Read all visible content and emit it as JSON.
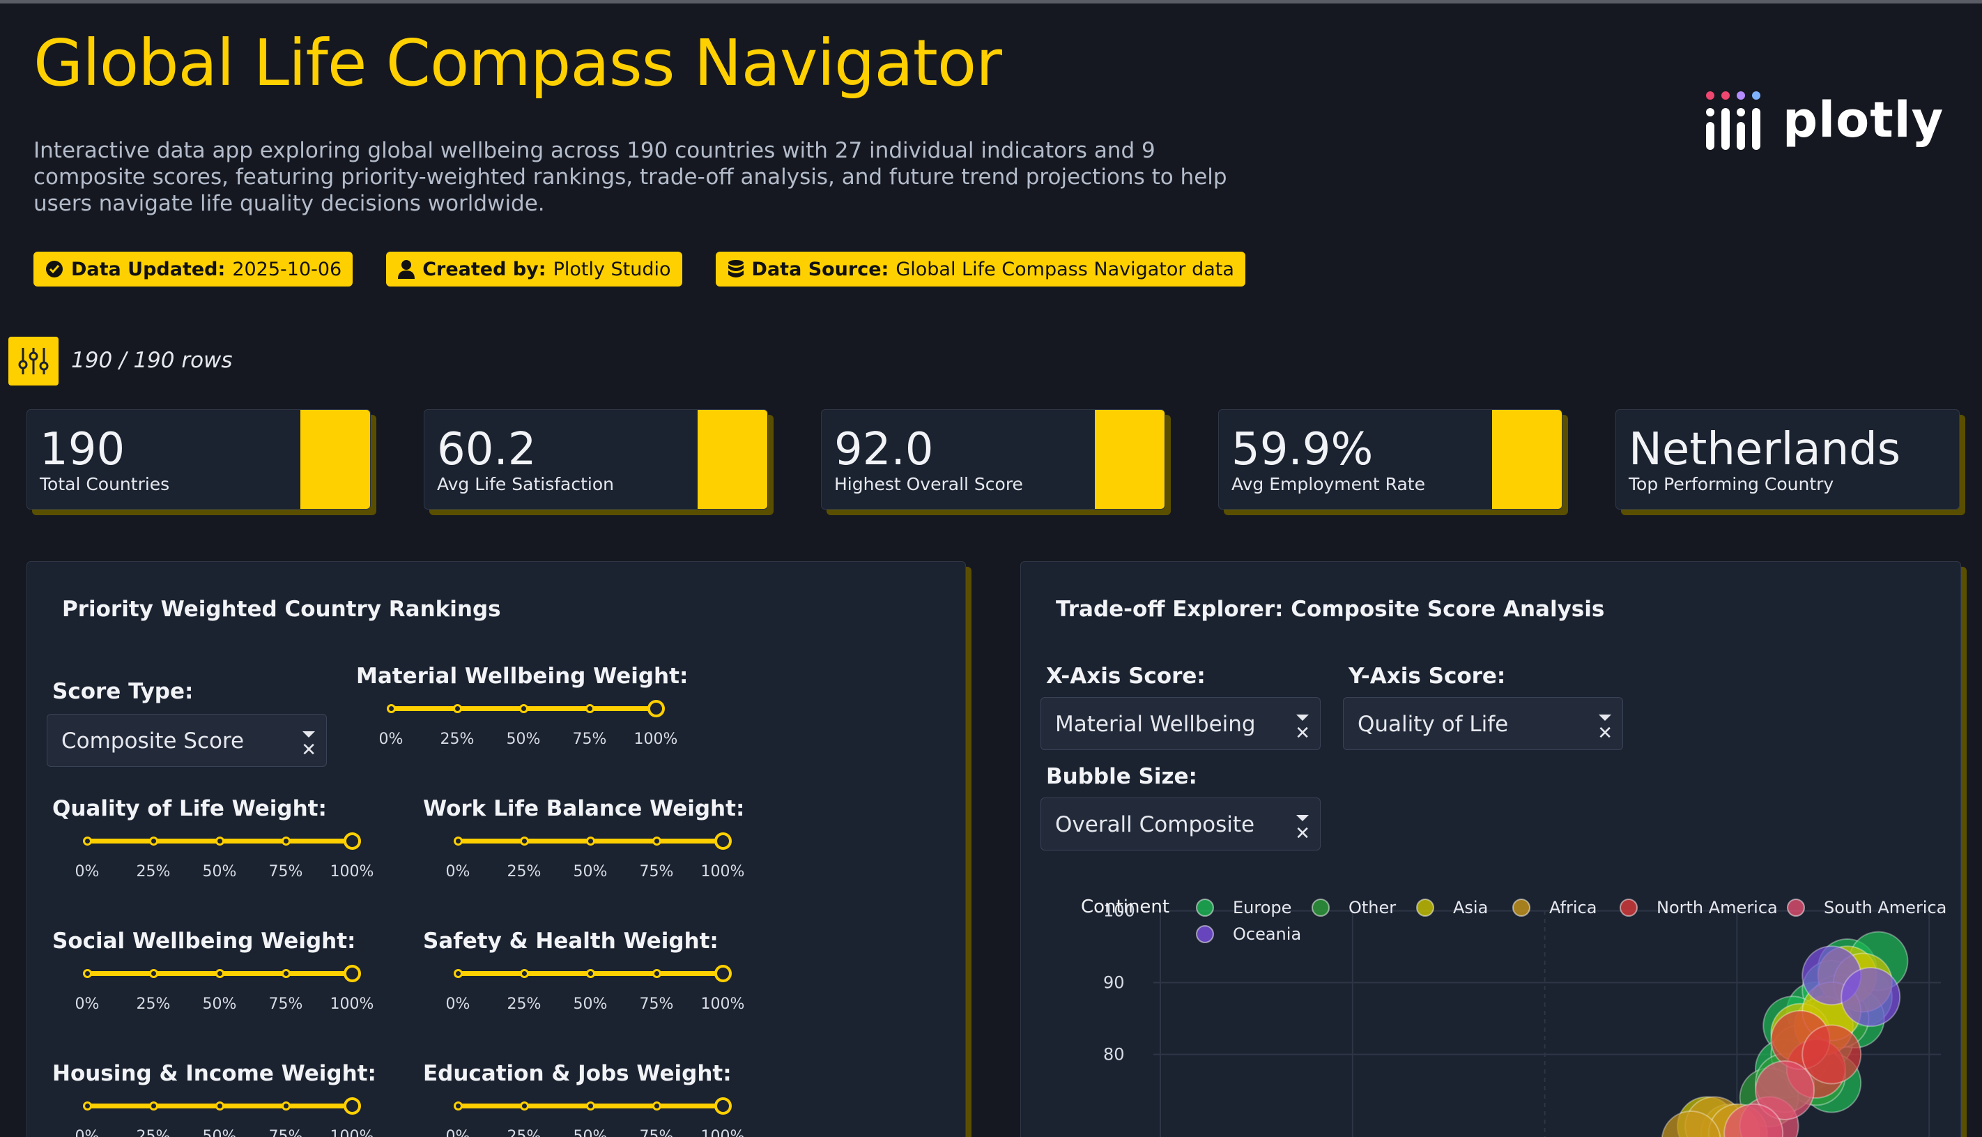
{
  "header": {
    "title": "Global Life Compass Navigator",
    "subtitle": "Interactive data app exploring global wellbeing across 190 countries with 27 individual indicators and 9 composite scores, featuring priority-weighted rankings, trade-off analysis, and future trend projections to help users navigate life quality decisions worldwide.",
    "logo_text": "plotly",
    "badges": [
      {
        "label": "Data Updated:",
        "value": "2025-10-06",
        "icon": "check-circle-icon"
      },
      {
        "label": "Created by:",
        "value": "Plotly Studio",
        "icon": "user-icon"
      },
      {
        "label": "Data Source:",
        "value": "Global Life Compass Navigator data",
        "icon": "database-icon"
      }
    ]
  },
  "filter": {
    "rows_text": "190 / 190 rows",
    "icon": "sliders-icon"
  },
  "kpis": [
    {
      "value": "190",
      "label": "Total Countries"
    },
    {
      "value": "60.2",
      "label": "Avg Life Satisfaction"
    },
    {
      "value": "92.0",
      "label": "Highest Overall Score"
    },
    {
      "value": "59.9%",
      "label": "Avg Employment Rate"
    },
    {
      "value": "Netherlands",
      "label": "Top Performing Country"
    }
  ],
  "rankings": {
    "title": "Priority Weighted Country Rankings",
    "score_type_label": "Score Type:",
    "score_type_value": "Composite Score",
    "tick_labels": [
      "0%",
      "25%",
      "50%",
      "75%",
      "100%"
    ],
    "sliders": [
      {
        "label": "Material Wellbeing Weight:",
        "value": 1.0
      },
      {
        "label": "Quality of Life Weight:",
        "value": 1.0
      },
      {
        "label": "Work Life Balance Weight:",
        "value": 1.0
      },
      {
        "label": "Social Wellbeing Weight:",
        "value": 1.0
      },
      {
        "label": "Safety & Health Weight:",
        "value": 1.0
      },
      {
        "label": "Housing & Income Weight:",
        "value": 1.0
      },
      {
        "label": "Education & Jobs Weight:",
        "value": 1.0
      }
    ]
  },
  "tradeoff": {
    "title": "Trade-off Explorer: Composite Score Analysis",
    "x_label": "X-Axis Score:",
    "x_value": "Material Wellbeing",
    "y_label": "Y-Axis Score:",
    "y_value": "Quality of Life",
    "size_label": "Bubble Size:",
    "size_value": "Overall Composite"
  },
  "chart_data": {
    "type": "scatter",
    "legend_title": "Continent",
    "legend_placement": "top",
    "y_ticks": [
      "100",
      "90",
      "80"
    ],
    "yrange_visible": [
      68,
      102
    ],
    "xrange_visible": [
      0,
      100
    ],
    "series": [
      {
        "name": "Europe",
        "color": "#1db954",
        "points": [
          [
            88,
            92
          ],
          [
            84,
            86
          ],
          [
            86,
            89
          ],
          [
            90,
            88
          ],
          [
            81,
            84
          ],
          [
            85,
            82
          ],
          [
            87,
            87
          ],
          [
            92,
            93
          ],
          [
            83,
            79
          ],
          [
            80,
            78
          ],
          [
            86,
            76
          ],
          [
            89,
            85
          ]
        ]
      },
      {
        "name": "Other",
        "color": "#2e9d3a",
        "points": [
          [
            82,
            80
          ],
          [
            84,
            77
          ],
          [
            87,
            85
          ],
          [
            78,
            74
          ],
          [
            80,
            76
          ]
        ]
      },
      {
        "name": "Asia",
        "color": "#c9c400",
        "points": [
          [
            88,
            91
          ],
          [
            85,
            84
          ],
          [
            82,
            83
          ],
          [
            90,
            90
          ],
          [
            70,
            70
          ],
          [
            73,
            69
          ],
          [
            86,
            86
          ]
        ]
      },
      {
        "name": "Africa",
        "color": "#c8961a",
        "points": [
          [
            71,
            70
          ],
          [
            74,
            69
          ],
          [
            68,
            68
          ]
        ]
      },
      {
        "name": "North America",
        "color": "#d93a3a",
        "points": [
          [
            84,
            78
          ],
          [
            82,
            82
          ],
          [
            86,
            80
          ]
        ]
      },
      {
        "name": "South America",
        "color": "#e05070",
        "points": [
          [
            78,
            70
          ],
          [
            80,
            75
          ],
          [
            76,
            69
          ]
        ]
      },
      {
        "name": "Oceania",
        "color": "#7a4fe0",
        "points": [
          [
            86,
            91
          ],
          [
            91,
            88
          ]
        ]
      }
    ]
  }
}
